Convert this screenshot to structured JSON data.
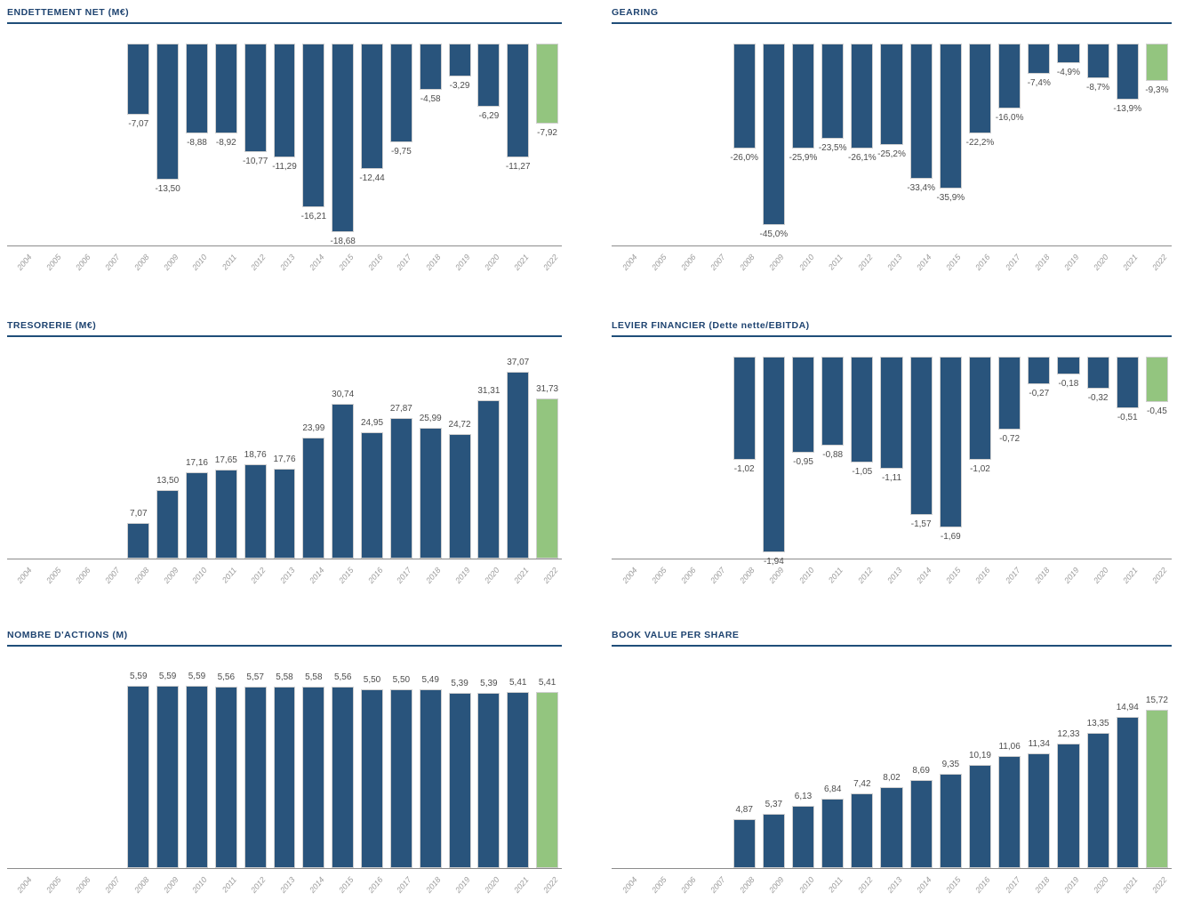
{
  "colors": {
    "title_color": "#1E4370",
    "divider_color": "#1F4E79",
    "bar_color": "#29547C",
    "bar_highlight_color": "#93C57F",
    "value_label_color": "#4D4D4D",
    "axis_line_color": "#8C8C8C",
    "axis_label_color": "#9B9B9B",
    "bg_color": "#FFFFFF"
  },
  "chart_data": [
    {
      "title": "ENDETTEMENT NET (M€)",
      "type": "bar",
      "direction": "down",
      "grid": false,
      "legend": "none",
      "highlight_last": true,
      "ylim": [
        -20,
        0
      ],
      "categories": [
        "2004",
        "2005",
        "2006",
        "2007",
        "2008",
        "2009",
        "2010",
        "2011",
        "2012",
        "2013",
        "2014",
        "2015",
        "2016",
        "2017",
        "2018",
        "2019",
        "2020",
        "2021",
        "2022"
      ],
      "values": [
        null,
        null,
        null,
        null,
        -7.07,
        -13.5,
        -8.88,
        -8.92,
        -10.77,
        -11.29,
        -16.21,
        -18.68,
        -12.44,
        -9.75,
        -4.58,
        -3.29,
        -6.29,
        -11.27,
        -7.92
      ],
      "labels": [
        null,
        null,
        null,
        null,
        "-7,07",
        "-13,50",
        "-8,88",
        "-8,92",
        "-10,77",
        "-11,29",
        "-16,21",
        "-18,68",
        "-12,44",
        "-9,75",
        "-4,58",
        "-3,29",
        "-6,29",
        "-11,27",
        "-7,92"
      ]
    },
    {
      "title": "GEARING",
      "type": "bar",
      "direction": "down",
      "grid": false,
      "legend": "none",
      "highlight_last": true,
      "ylim": [
        -50,
        0
      ],
      "categories": [
        "2004",
        "2005",
        "2006",
        "2007",
        "2008",
        "2009",
        "2010",
        "2011",
        "2012",
        "2013",
        "2014",
        "2015",
        "2016",
        "2017",
        "2018",
        "2019",
        "2020",
        "2021",
        "2022"
      ],
      "values": [
        null,
        null,
        null,
        null,
        -26.0,
        -45.0,
        -25.9,
        -23.5,
        -26.1,
        -25.2,
        -33.4,
        -35.9,
        -22.2,
        -16.0,
        -7.4,
        -4.9,
        -8.7,
        -13.9,
        -9.3
      ],
      "labels": [
        null,
        null,
        null,
        null,
        "-26,0%",
        "-45,0%",
        "-25,9%",
        "-23,5%",
        "-26,1%",
        "-25,2%",
        "-33,4%",
        "-35,9%",
        "-22,2%",
        "-16,0%",
        "-7,4%",
        "-4,9%",
        "-8,7%",
        "-13,9%",
        "-9,3%"
      ]
    },
    {
      "title": "TRESORERIE (M€)",
      "type": "bar",
      "direction": "up",
      "grid": false,
      "legend": "none",
      "highlight_last": true,
      "ylim": [
        0,
        40
      ],
      "categories": [
        "2004",
        "2005",
        "2006",
        "2007",
        "2008",
        "2009",
        "2010",
        "2011",
        "2012",
        "2013",
        "2014",
        "2015",
        "2016",
        "2017",
        "2018",
        "2019",
        "2020",
        "2021",
        "2022"
      ],
      "values": [
        null,
        null,
        null,
        null,
        7.07,
        13.5,
        17.16,
        17.65,
        18.76,
        17.76,
        23.99,
        30.74,
        24.95,
        27.87,
        25.99,
        24.72,
        31.31,
        37.07,
        31.73
      ],
      "labels": [
        null,
        null,
        null,
        null,
        "7,07",
        "13,50",
        "17,16",
        "17,65",
        "18,76",
        "17,76",
        "23,99",
        "30,74",
        "24,95",
        "27,87",
        "25,99",
        "24,72",
        "31,31",
        "37,07",
        "31,73"
      ]
    },
    {
      "title": "LEVIER FINANCIER (Dette nette/EBITDA)",
      "type": "bar",
      "direction": "down",
      "grid": false,
      "legend": "none",
      "highlight_last": true,
      "ylim": [
        -2,
        0
      ],
      "categories": [
        "2004",
        "2005",
        "2006",
        "2007",
        "2008",
        "2009",
        "2010",
        "2011",
        "2012",
        "2013",
        "2014",
        "2015",
        "2016",
        "2017",
        "2018",
        "2019",
        "2020",
        "2021",
        "2022"
      ],
      "values": [
        null,
        null,
        null,
        null,
        -1.02,
        -1.94,
        -0.95,
        -0.88,
        -1.05,
        -1.11,
        -1.57,
        -1.69,
        -1.02,
        -0.72,
        -0.27,
        -0.18,
        -0.32,
        -0.51,
        -0.45
      ],
      "labels": [
        null,
        null,
        null,
        null,
        "-1,02",
        "-1,94",
        "-0,95",
        "-0,88",
        "-1,05",
        "-1,11",
        "-1,57",
        "-1,69",
        "-1,02",
        "-0,72",
        "-0,27",
        "-0,18",
        "-0,32",
        "-0,51",
        "-0,45"
      ]
    },
    {
      "title": "NOMBRE D'ACTIONS (M)",
      "type": "bar",
      "direction": "up",
      "grid": false,
      "legend": "none",
      "highlight_last": true,
      "ylim": [
        0,
        6.2
      ],
      "categories": [
        "2004",
        "2005",
        "2006",
        "2007",
        "2008",
        "2009",
        "2010",
        "2011",
        "2012",
        "2013",
        "2014",
        "2015",
        "2016",
        "2017",
        "2018",
        "2019",
        "2020",
        "2021",
        "2022"
      ],
      "values": [
        null,
        null,
        null,
        null,
        5.59,
        5.59,
        5.59,
        5.56,
        5.57,
        5.58,
        5.58,
        5.56,
        5.5,
        5.5,
        5.49,
        5.39,
        5.39,
        5.41,
        5.41
      ],
      "labels": [
        null,
        null,
        null,
        null,
        "5,59",
        "5,59",
        "5,59",
        "5,56",
        "5,57",
        "5,58",
        "5,58",
        "5,56",
        "5,50",
        "5,50",
        "5,49",
        "5,39",
        "5,39",
        "5,41",
        "5,41"
      ]
    },
    {
      "title": "BOOK VALUE PER SHARE",
      "type": "bar",
      "direction": "up",
      "grid": false,
      "legend": "none",
      "highlight_last": true,
      "ylim": [
        0,
        20
      ],
      "categories": [
        "2004",
        "2005",
        "2006",
        "2007",
        "2008",
        "2009",
        "2010",
        "2011",
        "2012",
        "2013",
        "2014",
        "2015",
        "2016",
        "2017",
        "2018",
        "2019",
        "2020",
        "2021",
        "2022"
      ],
      "values": [
        null,
        null,
        null,
        null,
        4.87,
        5.37,
        6.13,
        6.84,
        7.42,
        8.02,
        8.69,
        9.35,
        10.19,
        11.06,
        11.34,
        12.33,
        13.35,
        14.94,
        15.72
      ],
      "labels": [
        null,
        null,
        null,
        null,
        "4,87",
        "5,37",
        "6,13",
        "6,84",
        "7,42",
        "8,02",
        "8,69",
        "9,35",
        "10,19",
        "11,06",
        "11,34",
        "12,33",
        "13,35",
        "14,94",
        "15,72"
      ]
    }
  ]
}
